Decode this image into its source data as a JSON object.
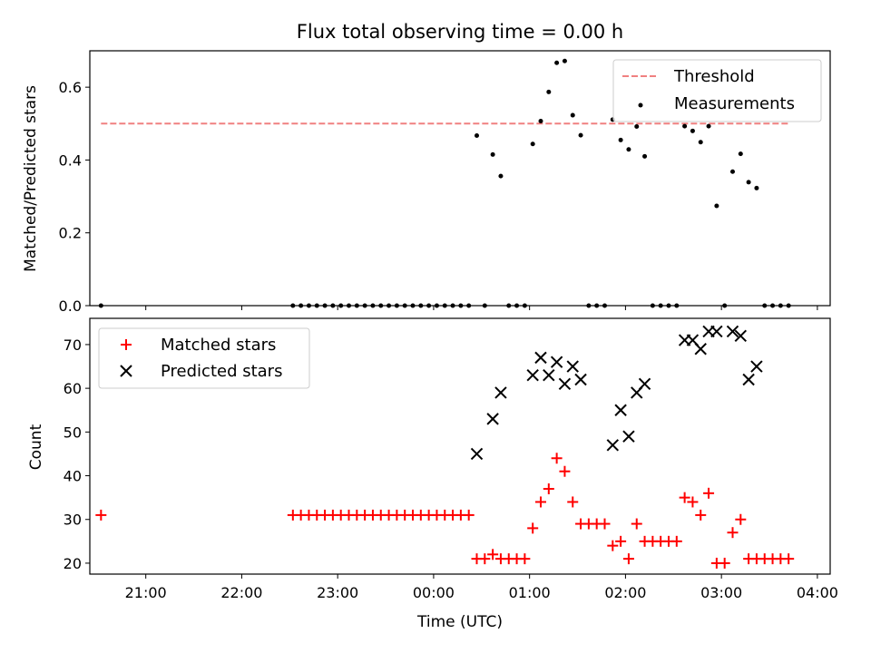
{
  "chart_data": [
    {
      "type": "scatter",
      "title": "Flux total observing time = 0.00 h",
      "xlabel": "",
      "ylabel": "Matched/Predicted stars",
      "xlim": [
        "20:25",
        "04:08"
      ],
      "ylim": [
        0,
        0.7
      ],
      "yticks": [
        0.0,
        0.2,
        0.4,
        0.6
      ],
      "ytick_labels": [
        "0.0",
        "0.2",
        "0.4",
        "0.6"
      ],
      "grid": false,
      "legend": "top-right",
      "threshold": {
        "name": "Threshold",
        "value": 0.5,
        "x_start": "20:32",
        "x_end": "03:42",
        "color": "#f08080",
        "style": "dashed"
      },
      "series": [
        {
          "name": "Measurements",
          "color": "#000000",
          "marker": "dot",
          "x": [
            "20:32",
            "22:32",
            "22:37",
            "22:42",
            "22:47",
            "22:52",
            "22:57",
            "23:02",
            "23:07",
            "23:12",
            "23:17",
            "23:22",
            "23:27",
            "23:32",
            "23:37",
            "23:42",
            "23:47",
            "23:52",
            "23:57",
            "00:02",
            "00:07",
            "00:12",
            "00:17",
            "00:22",
            "00:27",
            "00:32",
            "00:37",
            "00:42",
            "00:47",
            "00:52",
            "00:57",
            "01:02",
            "01:07",
            "01:12",
            "01:17",
            "01:22",
            "01:27",
            "01:32",
            "01:37",
            "01:42",
            "01:47",
            "01:52",
            "01:57",
            "02:02",
            "02:07",
            "02:12",
            "02:17",
            "02:22",
            "02:27",
            "02:32",
            "02:37",
            "02:42",
            "02:47",
            "02:52",
            "02:57",
            "03:02",
            "03:07",
            "03:12",
            "03:17",
            "03:22",
            "03:27",
            "03:32",
            "03:37",
            "03:42"
          ],
          "y": [
            0,
            0,
            0,
            0,
            0,
            0,
            0,
            0,
            0,
            0,
            0,
            0,
            0,
            0,
            0,
            0,
            0,
            0,
            0,
            0,
            0,
            0,
            0,
            0,
            0.467,
            0,
            0.415,
            0.356,
            0,
            0,
            0,
            0.444,
            0.507,
            0.587,
            0.667,
            0.672,
            0.523,
            0.468,
            0,
            0,
            0,
            0.511,
            0.455,
            0.429,
            0.492,
            0.41,
            0,
            0,
            0,
            0,
            0.493,
            0.48,
            0.449,
            0.493,
            0.274,
            0,
            0.368,
            0.417,
            0.339,
            0.323,
            0,
            0,
            0,
            0
          ]
        }
      ]
    },
    {
      "type": "scatter",
      "title": "",
      "xlabel": "Time (UTC)",
      "ylabel": "Count",
      "xlim": [
        "20:25",
        "04:08"
      ],
      "ylim": [
        17.5,
        76
      ],
      "yticks": [
        20,
        30,
        40,
        50,
        60,
        70
      ],
      "xticks": [
        "21:00",
        "22:00",
        "23:00",
        "00:00",
        "01:00",
        "02:00",
        "03:00",
        "04:00"
      ],
      "grid": false,
      "legend": "top-left",
      "series": [
        {
          "name": "Matched stars",
          "color": "#ff0000",
          "marker": "plus",
          "x": [
            "20:32",
            "22:32",
            "22:37",
            "22:42",
            "22:47",
            "22:52",
            "22:57",
            "23:02",
            "23:07",
            "23:12",
            "23:17",
            "23:22",
            "23:27",
            "23:32",
            "23:37",
            "23:42",
            "23:47",
            "23:52",
            "23:57",
            "00:02",
            "00:07",
            "00:12",
            "00:17",
            "00:22",
            "00:27",
            "00:32",
            "00:37",
            "00:42",
            "00:47",
            "00:52",
            "00:57",
            "01:02",
            "01:07",
            "01:12",
            "01:17",
            "01:22",
            "01:27",
            "01:32",
            "01:37",
            "01:42",
            "01:47",
            "01:52",
            "01:57",
            "02:02",
            "02:07",
            "02:12",
            "02:17",
            "02:22",
            "02:27",
            "02:32",
            "02:37",
            "02:42",
            "02:47",
            "02:52",
            "02:57",
            "03:02",
            "03:07",
            "03:12",
            "03:17",
            "03:22",
            "03:27",
            "03:32",
            "03:37",
            "03:42"
          ],
          "y": [
            31,
            31,
            31,
            31,
            31,
            31,
            31,
            31,
            31,
            31,
            31,
            31,
            31,
            31,
            31,
            31,
            31,
            31,
            31,
            31,
            31,
            31,
            31,
            31,
            21,
            21,
            22,
            21,
            21,
            21,
            21,
            28,
            34,
            37,
            44,
            41,
            34,
            29,
            29,
            29,
            29,
            24,
            25,
            21,
            29,
            25,
            25,
            25,
            25,
            25,
            35,
            34,
            31,
            36,
            20,
            20,
            27,
            30,
            21,
            21,
            21,
            21,
            21,
            21
          ]
        },
        {
          "name": "Predicted stars",
          "color": "#000000",
          "marker": "x",
          "x": [
            "00:27",
            "00:37",
            "00:42",
            "01:02",
            "01:07",
            "01:12",
            "01:17",
            "01:22",
            "01:27",
            "01:32",
            "01:52",
            "01:57",
            "02:02",
            "02:07",
            "02:12",
            "02:37",
            "02:42",
            "02:47",
            "02:52",
            "02:57",
            "03:07",
            "03:12",
            "03:17",
            "03:22"
          ],
          "y": [
            45,
            53,
            59,
            63,
            67,
            63,
            66,
            61,
            65,
            62,
            47,
            55,
            49,
            59,
            61,
            71,
            71,
            69,
            73,
            73,
            73,
            72,
            62,
            65
          ]
        }
      ]
    }
  ]
}
